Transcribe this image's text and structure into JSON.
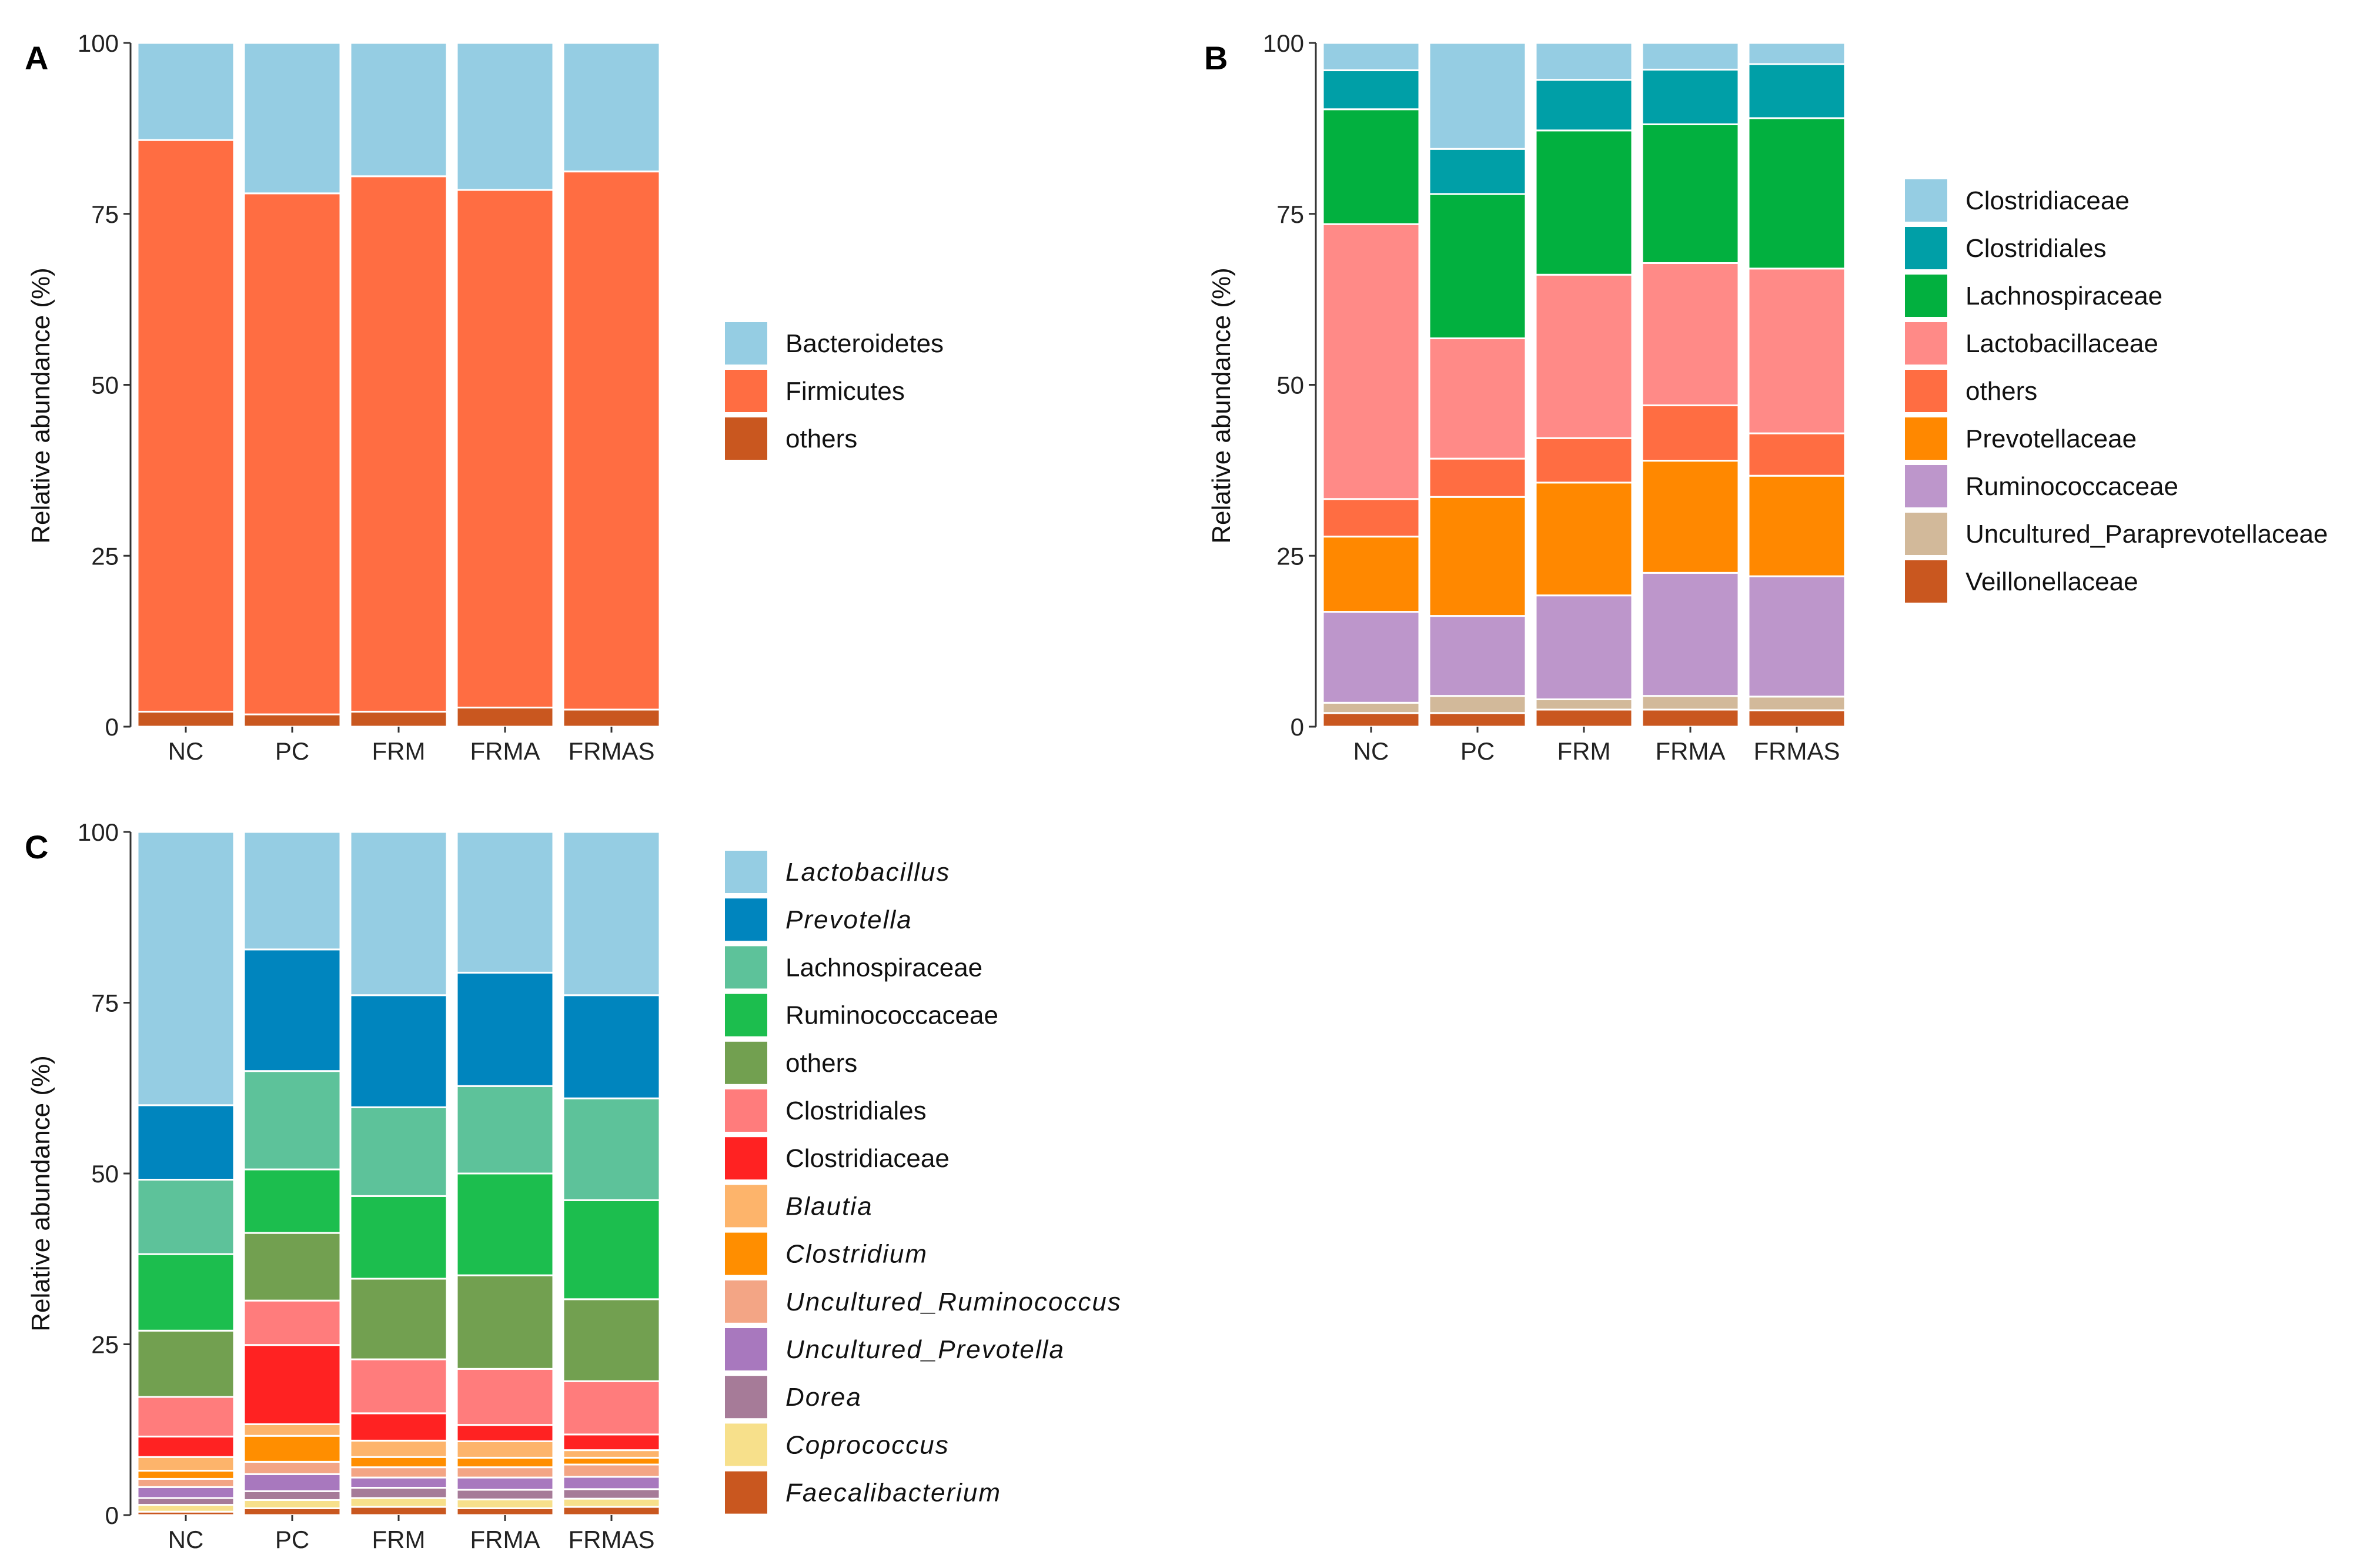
{
  "chart_data": [
    {
      "type": "bar",
      "stacked": true,
      "panel_label": "A",
      "ylabel": "Relative abundance (%)",
      "ylim": [
        0,
        100
      ],
      "yticks": [
        0,
        25,
        50,
        75,
        100
      ],
      "categories": [
        "NC",
        "PC",
        "FRM",
        "FRMA",
        "FRMAS"
      ],
      "legend": [
        "Bacteroidetes",
        "Firmicutes",
        "others"
      ],
      "series": [
        {
          "name": "others",
          "color": "#C9571F",
          "values": [
            2.2,
            1.8,
            2.2,
            2.8,
            2.5
          ]
        },
        {
          "name": "Firmicutes",
          "color": "#FF6D42",
          "values": [
            83.6,
            76.2,
            78.3,
            75.7,
            78.7
          ]
        },
        {
          "name": "Bacteroidetes",
          "color": "#95CDE3",
          "values": [
            14.2,
            22.0,
            19.5,
            21.5,
            18.8
          ]
        }
      ]
    },
    {
      "type": "bar",
      "stacked": true,
      "panel_label": "B",
      "ylabel": "Relative abundance (%)",
      "ylim": [
        0,
        100
      ],
      "yticks": [
        0,
        25,
        50,
        75,
        100
      ],
      "categories": [
        "NC",
        "PC",
        "FRM",
        "FRMA",
        "FRMAS"
      ],
      "legend": [
        "Clostridiaceae",
        "Clostridiales",
        "Lachnospiraceae",
        "Lactobacillaceae",
        "others",
        "Prevotellaceae",
        "Ruminococcaceae",
        "Uncultured_Paraprevotellaceae",
        "Veillonellaceae"
      ],
      "series": [
        {
          "name": "Veillonellaceae",
          "color": "#C9571F",
          "values": [
            2.0,
            2.0,
            2.5,
            2.5,
            2.4
          ]
        },
        {
          "name": "Uncultured_Paraprevotellaceae",
          "color": "#D2B99A",
          "values": [
            1.5,
            2.5,
            1.5,
            2.0,
            2.0
          ]
        },
        {
          "name": "Ruminococcaceae",
          "color": "#BD96CB",
          "values": [
            13.3,
            11.7,
            15.2,
            18.0,
            17.6
          ]
        },
        {
          "name": "Prevotellaceae",
          "color": "#FF8800",
          "values": [
            11.0,
            17.4,
            16.5,
            16.4,
            14.7
          ]
        },
        {
          "name": "others",
          "color": "#FF6D42",
          "values": [
            5.5,
            5.6,
            6.5,
            8.1,
            6.2
          ]
        },
        {
          "name": "Lactobacillaceae",
          "color": "#FF8A87",
          "values": [
            40.2,
            17.6,
            23.9,
            20.8,
            24.1
          ]
        },
        {
          "name": "Lachnospiraceae",
          "color": "#02B03F",
          "values": [
            16.8,
            21.1,
            21.1,
            20.3,
            22.0
          ]
        },
        {
          "name": "Clostridiales",
          "color": "#009FA7",
          "values": [
            5.7,
            6.6,
            7.4,
            8.0,
            7.9
          ]
        },
        {
          "name": "Clostridiaceae",
          "color": "#95CDE3",
          "values": [
            4.0,
            15.5,
            5.4,
            3.9,
            3.1
          ]
        }
      ]
    },
    {
      "type": "bar",
      "stacked": true,
      "panel_label": "C",
      "ylabel": "Relative abundance (%)",
      "ylim": [
        0,
        100
      ],
      "yticks": [
        0,
        25,
        50,
        75,
        100
      ],
      "categories": [
        "NC",
        "PC",
        "FRM",
        "FRMA",
        "FRMAS"
      ],
      "legend": [
        "Lactobacillus",
        "Prevotella",
        "Lachnospiraceae",
        "Ruminococcaceae",
        "others",
        "Clostridiales",
        "Clostridiaceae",
        "Blautia",
        "Clostridium",
        "Uncultured_Ruminococcus",
        "Uncultured_Prevotella",
        "Dorea",
        "Coprococcus",
        "Faecalibacterium"
      ],
      "italic": [
        "Lactobacillus",
        "Prevotella",
        "Blautia",
        "Clostridium",
        "Uncultured_Ruminococcus",
        "Uncultured_Prevotella",
        "Dorea",
        "Coprococcus",
        "Faecalibacterium"
      ],
      "series": [
        {
          "name": "Faecalibacterium",
          "color": "#C9571F",
          "values": [
            0.5,
            1.0,
            1.2,
            1.0,
            1.2
          ]
        },
        {
          "name": "Coprococcus",
          "color": "#F7E08B",
          "values": [
            1.0,
            1.2,
            1.3,
            1.3,
            1.2
          ]
        },
        {
          "name": "Dorea",
          "color": "#A67B98",
          "values": [
            1.0,
            1.3,
            1.5,
            1.4,
            1.4
          ]
        },
        {
          "name": "Uncultured_Prevotella",
          "color": "#A878BE",
          "values": [
            1.6,
            2.5,
            1.5,
            1.8,
            1.8
          ]
        },
        {
          "name": "Uncultured_Ruminococcus",
          "color": "#F3A585",
          "values": [
            1.2,
            1.8,
            1.5,
            1.5,
            1.8
          ]
        },
        {
          "name": "Clostridium",
          "color": "#FF8E00",
          "values": [
            1.2,
            3.8,
            1.5,
            1.4,
            1.0
          ]
        },
        {
          "name": "Blautia",
          "color": "#FDB46B",
          "values": [
            2.0,
            1.7,
            2.4,
            2.4,
            1.1
          ]
        },
        {
          "name": "Clostridiaceae",
          "color": "#FF2222",
          "values": [
            3.0,
            11.6,
            4.0,
            2.4,
            2.3
          ]
        },
        {
          "name": "Clostridiales",
          "color": "#FF7C7C",
          "values": [
            5.8,
            6.5,
            7.9,
            8.2,
            7.8
          ]
        },
        {
          "name": "others",
          "color": "#72A050",
          "values": [
            9.7,
            9.9,
            11.8,
            13.7,
            12.0
          ]
        },
        {
          "name": "Ruminococcaceae",
          "color": "#1CBE4E",
          "values": [
            11.2,
            9.3,
            12.1,
            14.9,
            14.5
          ]
        },
        {
          "name": "Lachnospiraceae",
          "color": "#5DC29A",
          "values": [
            10.9,
            14.4,
            13.0,
            12.8,
            14.9
          ]
        },
        {
          "name": "Prevotella",
          "color": "#0085BE",
          "values": [
            10.9,
            17.8,
            16.4,
            16.6,
            15.1
          ]
        },
        {
          "name": "Lactobacillus",
          "color": "#95CDE3",
          "values": [
            40.0,
            17.2,
            23.9,
            20.6,
            23.9
          ]
        }
      ]
    }
  ]
}
